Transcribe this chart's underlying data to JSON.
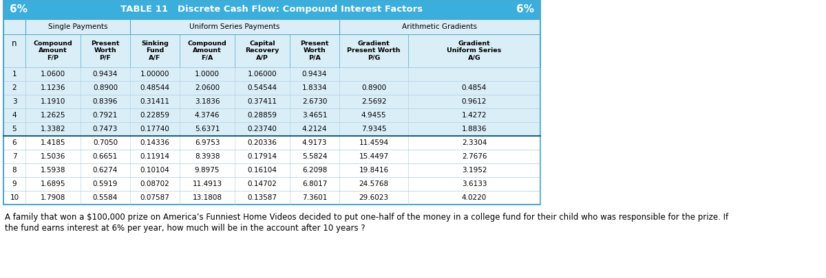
{
  "title": "TABLE 11   Discrete Cash Flow: Compound Interest Factors",
  "rate": "6%",
  "header_bg": "#3aaedc",
  "subheader_bg": "#daeef8",
  "row_blue_bg": "#daeef8",
  "row_white_bg": "#ffffff",
  "border_color": "#4aa8cc",
  "thick_border_color": "#1a6080",
  "col_labels": [
    "Compound\nAmount\nF/P",
    "Present\nWorth\nP/F",
    "Sinking\nFund\nA/F",
    "Compound\nAmount\nF/A",
    "Capital\nRecovery\nA/P",
    "Present\nWorth\nP/A",
    "Gradient\nPresent Worth\nP/G",
    "Gradient\nUniform Series\nA/G"
  ],
  "rows": [
    [
      1,
      "1.0600",
      "0.9434",
      "1.00000",
      "1.0000",
      "1.06000",
      "0.9434",
      "",
      ""
    ],
    [
      2,
      "1.1236",
      "0.8900",
      "0.48544",
      "2.0600",
      "0.54544",
      "1.8334",
      "0.8900",
      "0.4854"
    ],
    [
      3,
      "1.1910",
      "0.8396",
      "0.31411",
      "3.1836",
      "0.37411",
      "2.6730",
      "2.5692",
      "0.9612"
    ],
    [
      4,
      "1.2625",
      "0.7921",
      "0.22859",
      "4.3746",
      "0.28859",
      "3.4651",
      "4.9455",
      "1.4272"
    ],
    [
      5,
      "1.3382",
      "0.7473",
      "0.17740",
      "5.6371",
      "0.23740",
      "4.2124",
      "7.9345",
      "1.8836"
    ],
    [
      6,
      "1.4185",
      "0.7050",
      "0.14336",
      "6.9753",
      "0.20336",
      "4.9173",
      "11.4594",
      "2.3304"
    ],
    [
      7,
      "1.5036",
      "0.6651",
      "0.11914",
      "8.3938",
      "0.17914",
      "5.5824",
      "15.4497",
      "2.7676"
    ],
    [
      8,
      "1.5938",
      "0.6274",
      "0.10104",
      "9.8975",
      "0.16104",
      "6.2098",
      "19.8416",
      "3.1952"
    ],
    [
      9,
      "1.6895",
      "0.5919",
      "0.08702",
      "11.4913",
      "0.14702",
      "6.8017",
      "24.5768",
      "3.6133"
    ],
    [
      10,
      "1.7908",
      "0.5584",
      "0.07587",
      "13.1808",
      "0.13587",
      "7.3601",
      "29.6023",
      "4.0220"
    ]
  ],
  "question_line1": "A family that won a $100,000 prize on America’s Funniest Home Videos decided to put one-half of the money in a college fund for their child who was responsible for the prize. If",
  "question_line2": "the fund earns interest at 6% per year, how much will be in the account after 10 years ?",
  "figsize": [
    12.0,
    4.05
  ],
  "dpi": 100
}
